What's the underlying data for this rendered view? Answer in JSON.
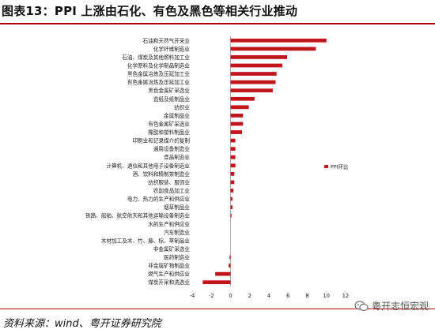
{
  "header": {
    "title": "图表13：PPI 上涨由石化、有色及黑色等相关行业推动"
  },
  "footer": {
    "source": "资料来源：wind、粤开证券研究院",
    "watermark": "粤开志恒宏观"
  },
  "colors": {
    "bar": "#c0151c",
    "title_rule": "#b30000"
  },
  "chart_data": {
    "type": "bar",
    "orientation": "horizontal",
    "categories": [
      "石油和天然气开采业",
      "化学纤维制造业",
      "石油、煤炭及其他燃料加工业",
      "化学原料及化学制品制造业",
      "黑色金属冶炼及压延加工业",
      "有色金属冶炼及压延加工业",
      "黑色金属矿采选业",
      "造纸及纸制品业",
      "纺织业",
      "金属制品业",
      "有色金属矿采选业",
      "橡胶和塑料制品业",
      "印刷业和记录媒介的复制",
      "通用设备制造业",
      "食品制造业",
      "计算机、通信和其他电子设备制造业",
      "酒、饮料和精制茶制造业",
      "纺织服装、服饰业",
      "农副食品加工业",
      "电力、热力的生产和供应业",
      "烟草制品业",
      "铁路、船舶、航空航天和其他运输设备制造业",
      "水的生产和供应业",
      "汽车制造业",
      "木材加工及木、竹、藤、棕、草制品业",
      "非金属矿采选业",
      "医药制造业",
      "非金属矿物制品业",
      "燃气生产和供应业",
      "煤炭开采和洗选业"
    ],
    "series": [
      {
        "name": "PPI环比",
        "values": [
          10.0,
          8.9,
          5.9,
          5.4,
          4.8,
          4.7,
          4.4,
          2.5,
          1.9,
          1.3,
          1.3,
          1.2,
          0.5,
          0.5,
          0.5,
          0.5,
          0.4,
          0.4,
          0.3,
          0.2,
          0.2,
          0.1,
          0.0,
          0.0,
          0.0,
          0.0,
          -0.1,
          -0.2,
          -1.6,
          -2.9
        ]
      }
    ],
    "xticks": [
      "-4",
      "-2",
      "0",
      "2",
      "4",
      "6",
      "8",
      "10",
      "12"
    ],
    "xlim": [
      -4,
      12
    ],
    "legend_position": "right",
    "grid": false
  }
}
